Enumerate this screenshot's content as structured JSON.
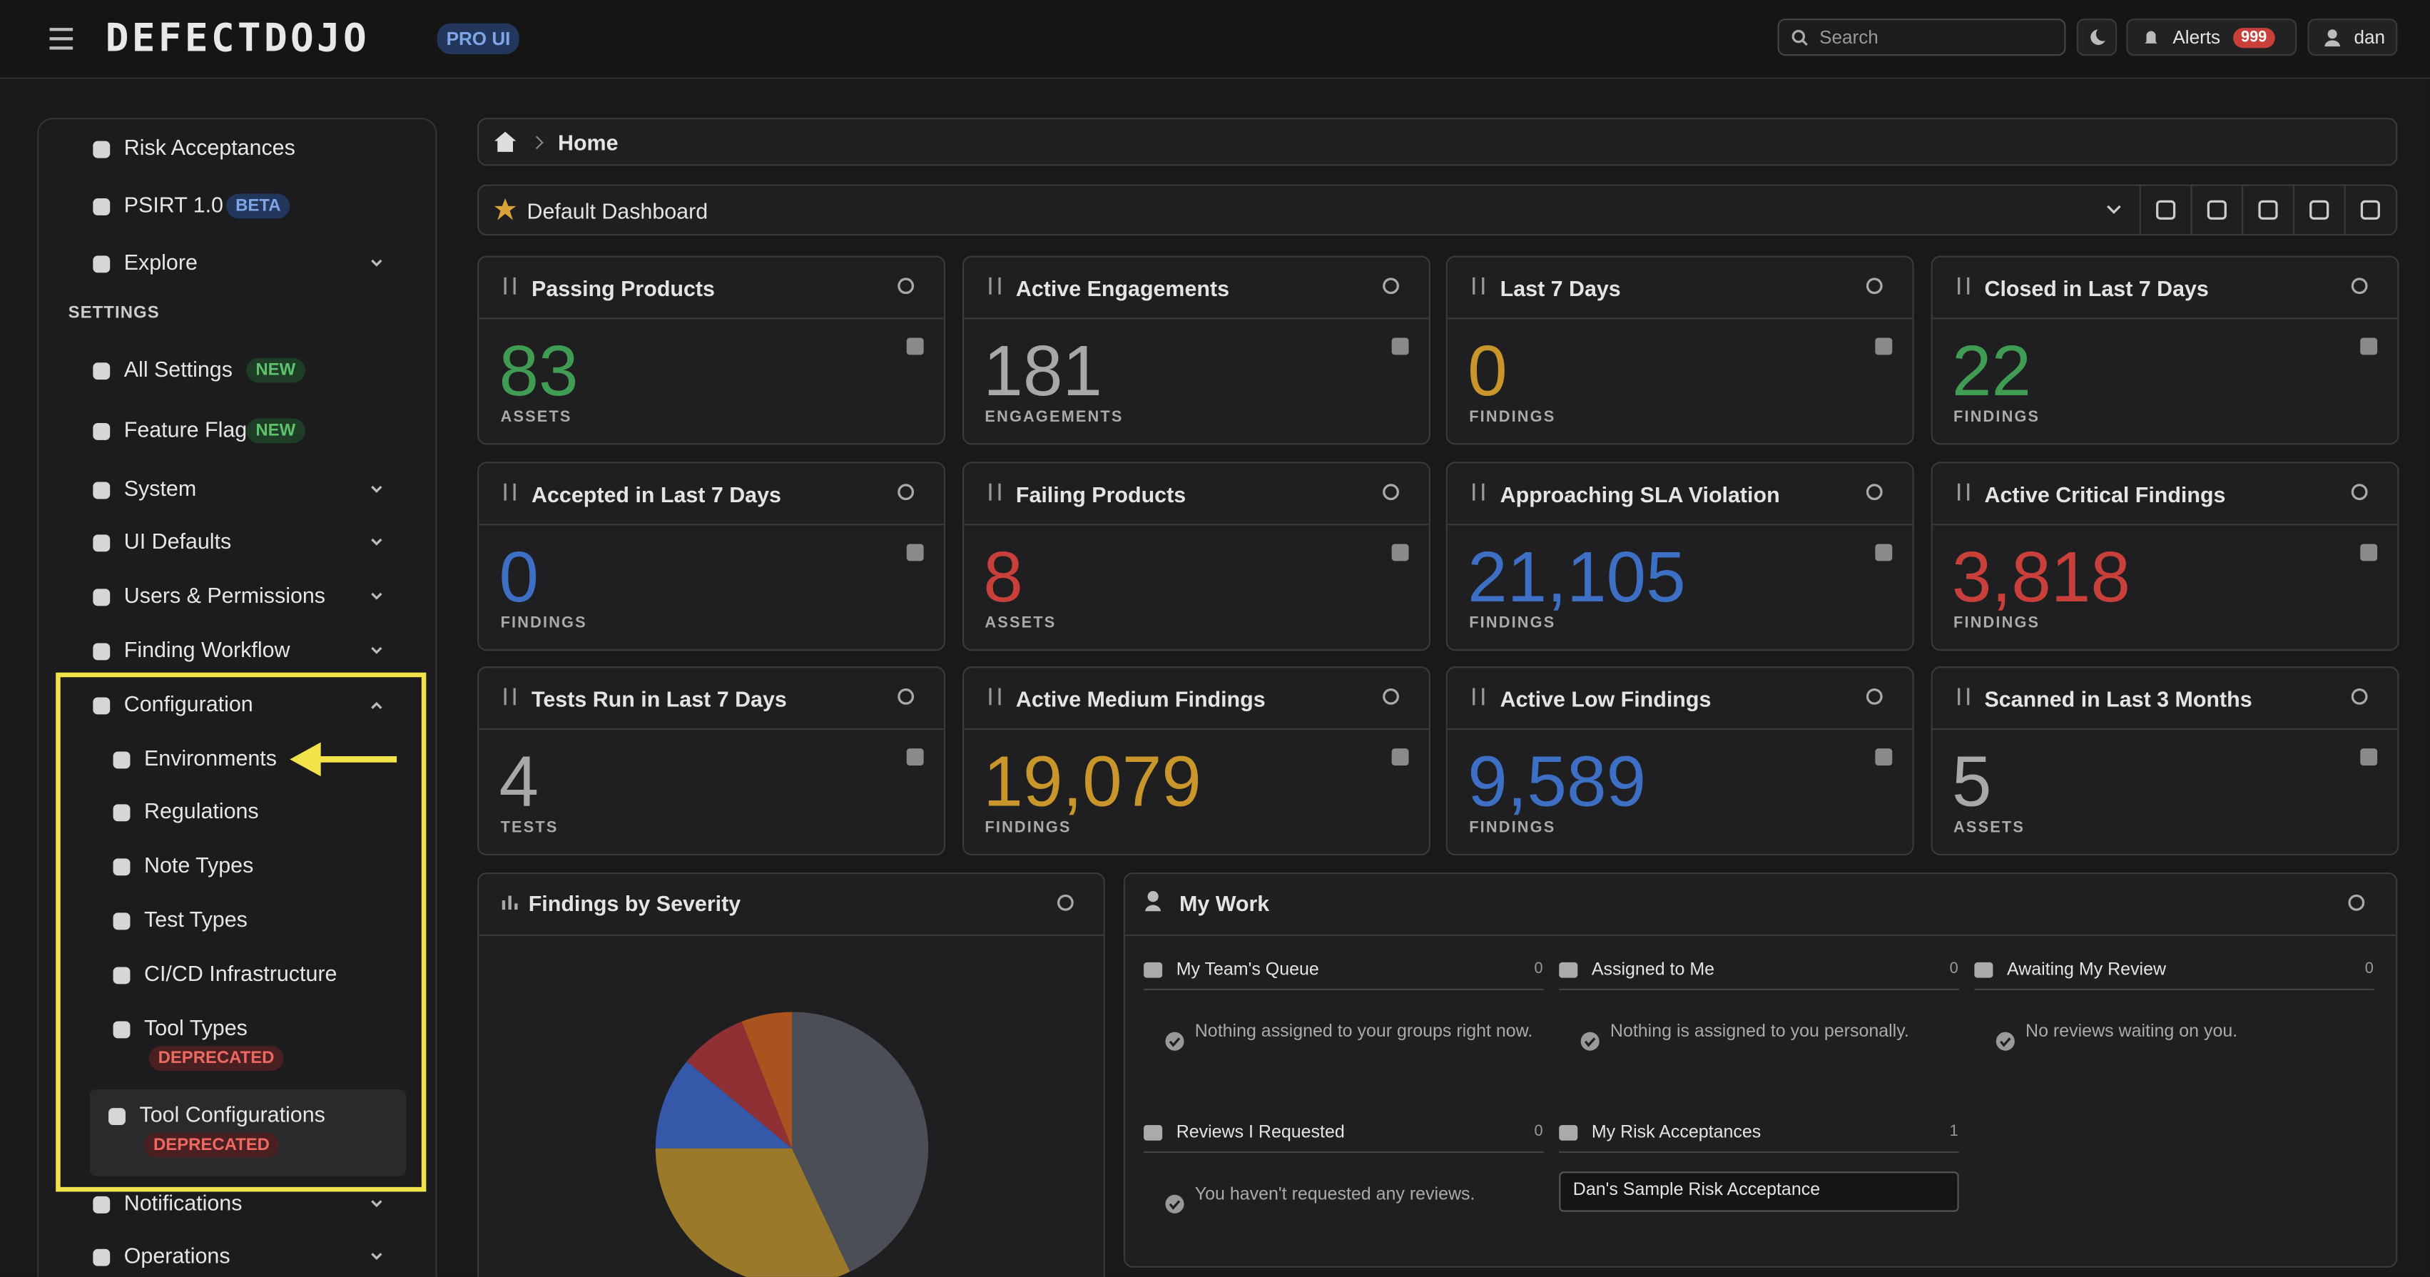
{
  "header": {
    "logo": "DEFECTDOJO",
    "badge": "PRO UI",
    "search": "Search",
    "alerts": "Alerts",
    "alerts_count": "999",
    "user": "dan"
  },
  "sidebar": {
    "items": [
      {
        "label": "Risk Acceptances"
      },
      {
        "label": "PSIRT 1.0",
        "badge": "BETA"
      },
      {
        "label": "Explore"
      },
      {
        "label": "All Settings",
        "badge": "NEW"
      },
      {
        "label": "Feature Flags",
        "badge": "NEW"
      },
      {
        "label": "System"
      },
      {
        "label": "UI Defaults"
      },
      {
        "label": "Users & Permissions"
      },
      {
        "label": "Finding Workflow"
      },
      {
        "label": "Configuration"
      },
      {
        "label": "Environments"
      },
      {
        "label": "Regulations"
      },
      {
        "label": "Note Types"
      },
      {
        "label": "Test Types"
      },
      {
        "label": "CI/CD Infrastructure"
      },
      {
        "label": "Tool Types",
        "badge": "DEPRECATED"
      },
      {
        "label": "Tool Configurations",
        "badge": "DEPRECATED"
      },
      {
        "label": "Notifications"
      },
      {
        "label": "Operations"
      }
    ],
    "section": "SETTINGS"
  },
  "breadcrumb": "Home",
  "dashboard": "Default Dashboard",
  "tiles": [
    {
      "title": "Passing Products",
      "value": "83",
      "unit": "ASSETS",
      "color": "#3f9c52"
    },
    {
      "title": "Active Engagements",
      "value": "181",
      "unit": "ENGAGEMENTS",
      "color": "#a8a8a8"
    },
    {
      "title": "Last 7 Days",
      "value": "0",
      "unit": "FINDINGS",
      "color": "#c8962a"
    },
    {
      "title": "Closed in Last 7 Days",
      "value": "22",
      "unit": "FINDINGS",
      "color": "#3f9c52"
    },
    {
      "title": "Accepted in Last 7 Days",
      "value": "0",
      "unit": "FINDINGS",
      "color": "#3d6fc4"
    },
    {
      "title": "Failing Products",
      "value": "8",
      "unit": "ASSETS",
      "color": "#c9403a"
    },
    {
      "title": "Approaching SLA Violation",
      "value": "21,105",
      "unit": "FINDINGS",
      "color": "#3d6fc4"
    },
    {
      "title": "Active Critical Findings",
      "value": "3,818",
      "unit": "FINDINGS",
      "color": "#c9403a"
    },
    {
      "title": "Tests Run in Last 7 Days",
      "value": "4",
      "unit": "TESTS",
      "color": "#a8a8a8"
    },
    {
      "title": "Active Medium Findings",
      "value": "19,079",
      "unit": "FINDINGS",
      "color": "#c8962a"
    },
    {
      "title": "Active Low Findings",
      "value": "9,589",
      "unit": "FINDINGS",
      "color": "#3d6fc4"
    },
    {
      "title": "Scanned in Last 3 Months",
      "value": "5",
      "unit": "ASSETS",
      "color": "#a8a8a8"
    }
  ],
  "severity_chart": {
    "title": "Findings by Severity",
    "values": [
      43,
      32,
      11,
      8,
      6
    ],
    "colors": [
      "#4b4e57",
      "#9a7a2a",
      "#3558a8",
      "#8e3034",
      "#a9541f"
    ]
  },
  "my_work": {
    "title": "My Work",
    "sections": [
      {
        "title": "My Team's Queue",
        "count": "0",
        "message": "Nothing assigned to your groups right now."
      },
      {
        "title": "Assigned to Me",
        "count": "0",
        "message": "Nothing is assigned to you personally."
      },
      {
        "title": "Awaiting My Review",
        "count": "0",
        "message": "No reviews waiting on you."
      },
      {
        "title": "Reviews I Requested",
        "count": "0",
        "message": "You haven't requested any reviews."
      },
      {
        "title": "My Risk Acceptances",
        "count": "1",
        "item": "Dan's Sample Risk Acceptance"
      }
    ]
  }
}
